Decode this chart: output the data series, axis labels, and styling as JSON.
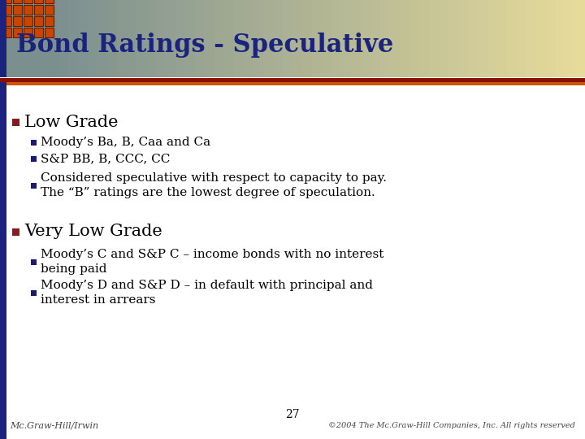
{
  "title": "Bond Ratings - Speculative",
  "title_color": "#1a237e",
  "title_fontsize": 22,
  "content_bg": "#FFFFFF",
  "red_square_color": "#8B1A1A",
  "bullet_square_color": "#1a1a6e",
  "page_number": "27",
  "footer_left": "Mc.Graw-Hill/Irwin",
  "footer_right": "©2004 The Mc.Graw-Hill Companies, Inc. All rights reserved",
  "bullet1_text": "Low Grade",
  "bullet1_sub": [
    "Moody’s Ba, B, Caa and Ca",
    "S&P BB, B, CCC, CC",
    "Considered speculative with respect to capacity to pay.\nThe “B” ratings are the lowest degree of speculation."
  ],
  "bullet2_text": "Very Low Grade",
  "bullet2_sub": [
    "Moody’s C and S&P C – income bonds with no interest\nbeing paid",
    "Moody’s D and S&P D – in default with principal and\ninterest in arrears"
  ],
  "top_bar_color": "#8B0000",
  "orange_grid_color": "#CC4400",
  "header_gray": "#7B8F8F",
  "header_yellow": "#E8DC9A",
  "green_line": "#4CAF50",
  "dark_blue_bar": "#1a237e"
}
